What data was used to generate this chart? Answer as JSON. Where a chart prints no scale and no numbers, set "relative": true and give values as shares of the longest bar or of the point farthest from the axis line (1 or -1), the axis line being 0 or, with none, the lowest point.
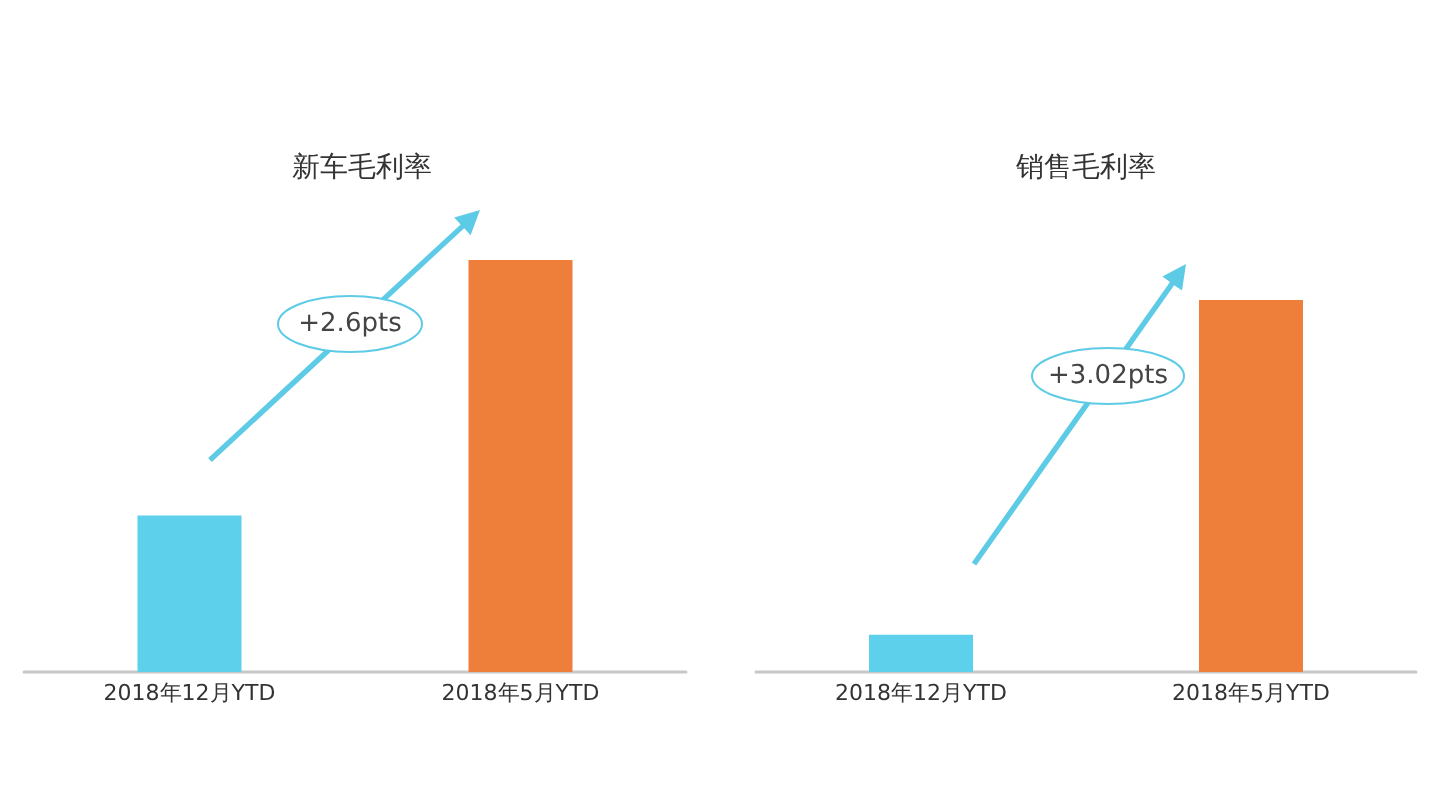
{
  "chart_data": [
    {
      "type": "bar",
      "title": "新车毛利率",
      "categories": [
        "2018年12月YTD",
        "2018年5月YTD"
      ],
      "values": [
        0.38,
        1
      ],
      "colors": [
        "#5dd0ec",
        "#ee7f3b"
      ],
      "relative": true,
      "annotations": [
        "+2.6pts"
      ]
    },
    {
      "type": "bar",
      "title": "销售毛利率",
      "categories": [
        "2018年12月YTD",
        "2018年5月YTD"
      ],
      "values": [
        0.1,
        1
      ],
      "colors": [
        "#5dd0ec",
        "#ee7f3b"
      ],
      "relative": true,
      "annotations": [
        "+3.02pts"
      ]
    }
  ]
}
